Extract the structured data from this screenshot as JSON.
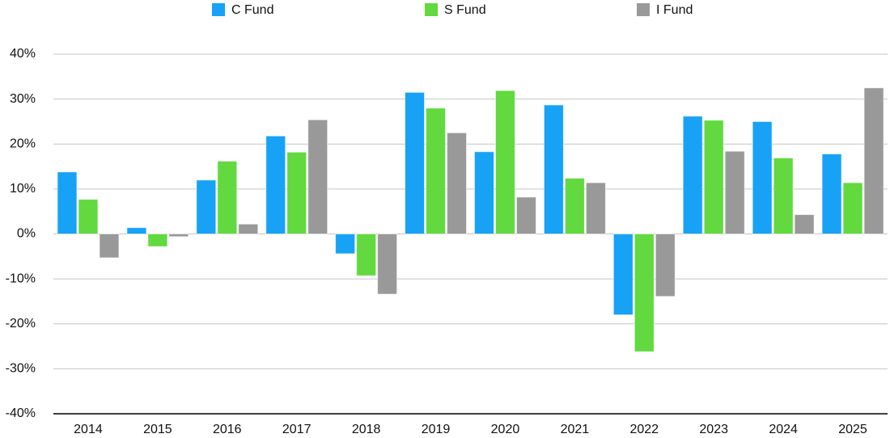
{
  "chart_data": {
    "type": "bar",
    "categories": [
      "2014",
      "2015",
      "2016",
      "2017",
      "2018",
      "2019",
      "2020",
      "2021",
      "2022",
      "2023",
      "2024",
      "2025"
    ],
    "series": [
      {
        "name": "C Fund",
        "color": "#17a2f6",
        "values": [
          13.8,
          1.4,
          12.0,
          21.8,
          -4.4,
          31.5,
          18.3,
          28.7,
          -18.0,
          26.2,
          25.0,
          17.8
        ]
      },
      {
        "name": "S Fund",
        "color": "#62d93f",
        "values": [
          7.7,
          -2.8,
          16.2,
          18.2,
          -9.3,
          28.0,
          31.9,
          12.4,
          -26.2,
          25.3,
          16.9,
          11.4
        ]
      },
      {
        "name": "I Fund",
        "color": "#999999",
        "values": [
          -5.3,
          -0.6,
          2.2,
          25.4,
          -13.4,
          22.5,
          8.2,
          11.4,
          -13.9,
          18.4,
          4.3,
          32.5
        ]
      }
    ],
    "ylim": [
      -40,
      40
    ],
    "yticks": [
      {
        "value": -40,
        "label": "-40%"
      },
      {
        "value": -30,
        "label": "-30%"
      },
      {
        "value": -20,
        "label": "-20%"
      },
      {
        "value": -10,
        "label": "-10%"
      },
      {
        "value": 0,
        "label": "0%"
      },
      {
        "value": 10,
        "label": "10%"
      },
      {
        "value": 20,
        "label": "20%"
      },
      {
        "value": 30,
        "label": "30%"
      },
      {
        "value": 40,
        "label": "40%"
      }
    ],
    "grid": true,
    "legend": "top"
  }
}
